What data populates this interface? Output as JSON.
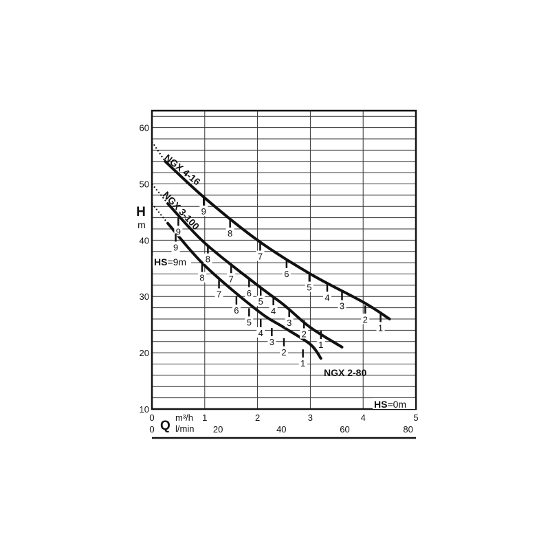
{
  "chart_data": {
    "type": "line",
    "title": "",
    "y_axis": {
      "label_top": "H",
      "label_unit": "m",
      "ticks": [
        10,
        20,
        30,
        40,
        50,
        60
      ],
      "range": [
        10,
        63
      ],
      "grid_step": 2
    },
    "x_axis": {
      "q_label": "Q",
      "unit_m3h": "m³/h",
      "unit_lmin": "l/min",
      "m3h_ticks": [
        "0",
        "1",
        "2",
        "3",
        "4",
        "5"
      ],
      "lmin_ticks": [
        "0",
        "20",
        "40",
        "60",
        "80"
      ],
      "range_m3h": [
        0,
        5
      ]
    },
    "annotations": {
      "hs_top": {
        "prefix": "HS",
        "rest": "=9m"
      },
      "hs_bottom": {
        "prefix": "HS",
        "rest": "=0m"
      }
    },
    "series": [
      {
        "name": "NGX 4-16",
        "dotted_start": [
          0.0,
          57.5
        ],
        "points": [
          [
            0.25,
            54.0
          ],
          [
            1.0,
            47.5
          ],
          [
            2.0,
            40.0
          ],
          [
            3.0,
            34.0
          ],
          [
            4.0,
            29.0
          ],
          [
            4.5,
            26.0
          ]
        ],
        "markers": [
          {
            "label": "9",
            "q": 0.98,
            "h": 47.6
          },
          {
            "label": "8",
            "q": 1.48,
            "h": 43.7
          },
          {
            "label": "7",
            "q": 2.05,
            "h": 39.6
          },
          {
            "label": "6",
            "q": 2.55,
            "h": 36.5
          },
          {
            "label": "5",
            "q": 2.98,
            "h": 34.1
          },
          {
            "label": "4",
            "q": 3.32,
            "h": 32.3
          },
          {
            "label": "3",
            "q": 3.6,
            "h": 30.8
          },
          {
            "label": "2",
            "q": 4.04,
            "h": 28.4
          },
          {
            "label": "1",
            "q": 4.33,
            "h": 26.9
          }
        ]
      },
      {
        "name": "NGX 3-100",
        "dotted_start": [
          0.0,
          50.0
        ],
        "points": [
          [
            0.3,
            46.5
          ],
          [
            1.0,
            39.5
          ],
          [
            2.0,
            32.0
          ],
          [
            2.5,
            28.5
          ],
          [
            3.0,
            24.5
          ],
          [
            3.6,
            21.0
          ]
        ],
        "markers": [
          {
            "label": "9",
            "q": 0.5,
            "h": 44.0
          },
          {
            "label": "8",
            "q": 1.06,
            "h": 39.1
          },
          {
            "label": "7",
            "q": 1.5,
            "h": 35.6
          },
          {
            "label": "6",
            "q": 1.84,
            "h": 33.1
          },
          {
            "label": "5",
            "q": 2.06,
            "h": 31.6
          },
          {
            "label": "4",
            "q": 2.3,
            "h": 29.9
          },
          {
            "label": "3",
            "q": 2.6,
            "h": 27.8
          },
          {
            "label": "2",
            "q": 2.88,
            "h": 25.8
          },
          {
            "label": "1",
            "q": 3.2,
            "h": 23.9
          }
        ]
      },
      {
        "name": "NGX 2-80",
        "dotted_start": [
          0.0,
          46.5
        ],
        "points": [
          [
            0.3,
            43.0
          ],
          [
            1.0,
            35.5
          ],
          [
            2.0,
            27.5
          ],
          [
            2.5,
            24.5
          ],
          [
            3.0,
            21.5
          ],
          [
            3.2,
            19.0
          ]
        ],
        "markers": [
          {
            "label": "9",
            "q": 0.45,
            "h": 41.2
          },
          {
            "label": "8",
            "q": 0.95,
            "h": 35.8
          },
          {
            "label": "7",
            "q": 1.27,
            "h": 32.9
          },
          {
            "label": "6",
            "q": 1.6,
            "h": 30.0
          },
          {
            "label": "5",
            "q": 1.84,
            "h": 27.9
          },
          {
            "label": "4",
            "q": 2.06,
            "h": 26.0
          },
          {
            "label": "3",
            "q": 2.27,
            "h": 24.4
          },
          {
            "label": "2",
            "q": 2.5,
            "h": 22.6
          },
          {
            "label": "1",
            "q": 2.86,
            "h": 20.6
          }
        ]
      }
    ],
    "extra_labels": [
      "9"
    ]
  }
}
